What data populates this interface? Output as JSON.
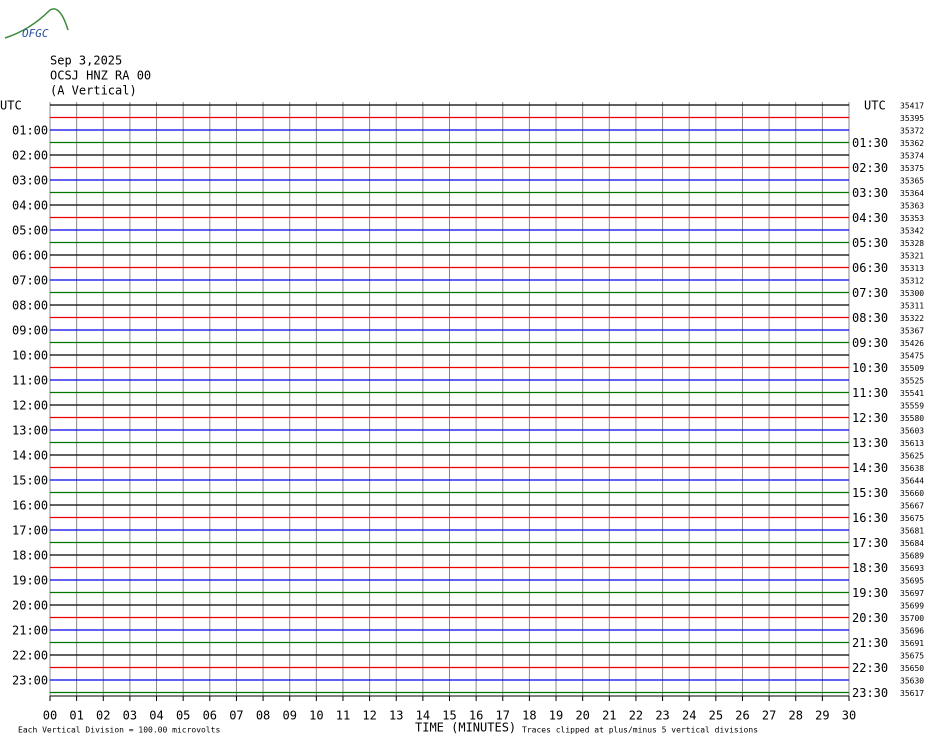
{
  "header": {
    "logo": "OFGC",
    "date": "Sep 3,2025",
    "station": "OCSJ HNZ RA 00",
    "component": "(A Vertical)"
  },
  "left_axis": {
    "title": "UTC",
    "labels": [
      "01:00",
      "02:00",
      "03:00",
      "04:00",
      "05:00",
      "06:00",
      "07:00",
      "08:00",
      "09:00",
      "10:00",
      "11:00",
      "12:00",
      "13:00",
      "14:00",
      "15:00",
      "16:00",
      "17:00",
      "18:00",
      "19:00",
      "20:00",
      "21:00",
      "22:00",
      "23:00"
    ]
  },
  "right_axis": {
    "title": "UTC",
    "labels": [
      "01:30",
      "02:30",
      "03:30",
      "04:30",
      "05:30",
      "06:30",
      "07:30",
      "08:30",
      "09:30",
      "10:30",
      "11:30",
      "12:30",
      "13:30",
      "14:30",
      "15:30",
      "16:30",
      "17:30",
      "18:30",
      "19:30",
      "20:30",
      "21:30",
      "22:30",
      "23:30"
    ]
  },
  "trace_offsets": [
    "35417",
    "35395",
    "35372",
    "35362",
    "35374",
    "35375",
    "35365",
    "35364",
    "35363",
    "35353",
    "35342",
    "35328",
    "35321",
    "35313",
    "35312",
    "35300",
    "35311",
    "35322",
    "35367",
    "35426",
    "35475",
    "35509",
    "35525",
    "35541",
    "35559",
    "35580",
    "35603",
    "35613",
    "35625",
    "35638",
    "35644",
    "35660",
    "35667",
    "35675",
    "35681",
    "35684",
    "35689",
    "35693",
    "35695",
    "35697",
    "35699",
    "35700",
    "35696",
    "35691",
    "35675",
    "35650",
    "35630",
    "35617"
  ],
  "x_axis": {
    "title": "TIME (MINUTES)",
    "labels": [
      "00",
      "01",
      "02",
      "03",
      "04",
      "05",
      "06",
      "07",
      "08",
      "09",
      "10",
      "11",
      "12",
      "13",
      "14",
      "15",
      "16",
      "17",
      "18",
      "19",
      "20",
      "21",
      "22",
      "23",
      "24",
      "25",
      "26",
      "27",
      "28",
      "29",
      "30"
    ]
  },
  "footer": {
    "scale_note": "Each Vertical Division =  100.00 microvolts",
    "clip_note": "Traces clipped at plus/minus 5 vertical divisions"
  }
}
